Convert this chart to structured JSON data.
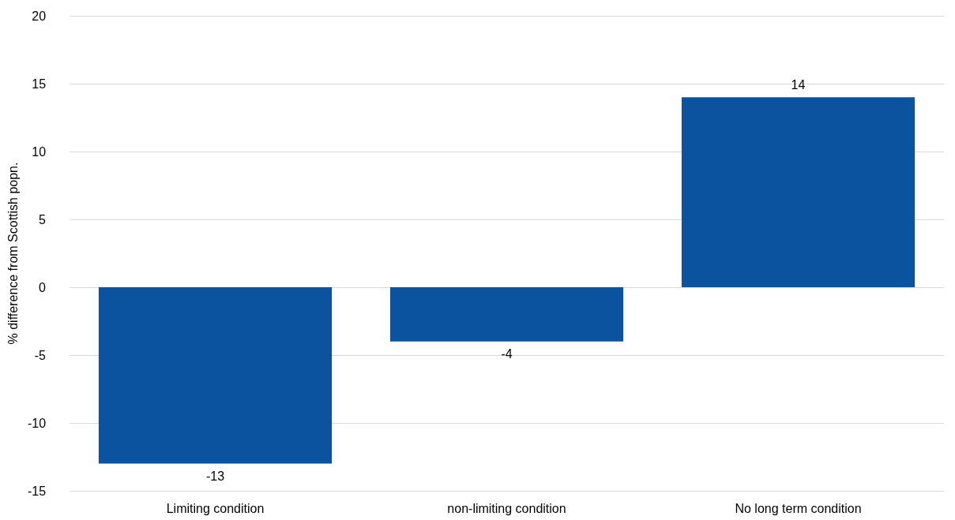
{
  "chart_data": {
    "type": "bar",
    "ylabel": "% difference from Scottish popn.",
    "categories": [
      "Limiting condition",
      "non-limiting condition",
      "No long term condition"
    ],
    "values": [
      -13,
      -4,
      14
    ],
    "color": "#0b539e",
    "ylim": [
      -15,
      20
    ],
    "yticks": [
      -15,
      -10,
      -5,
      0,
      5,
      10,
      15,
      20
    ],
    "grid": "y",
    "data_labels": true
  }
}
